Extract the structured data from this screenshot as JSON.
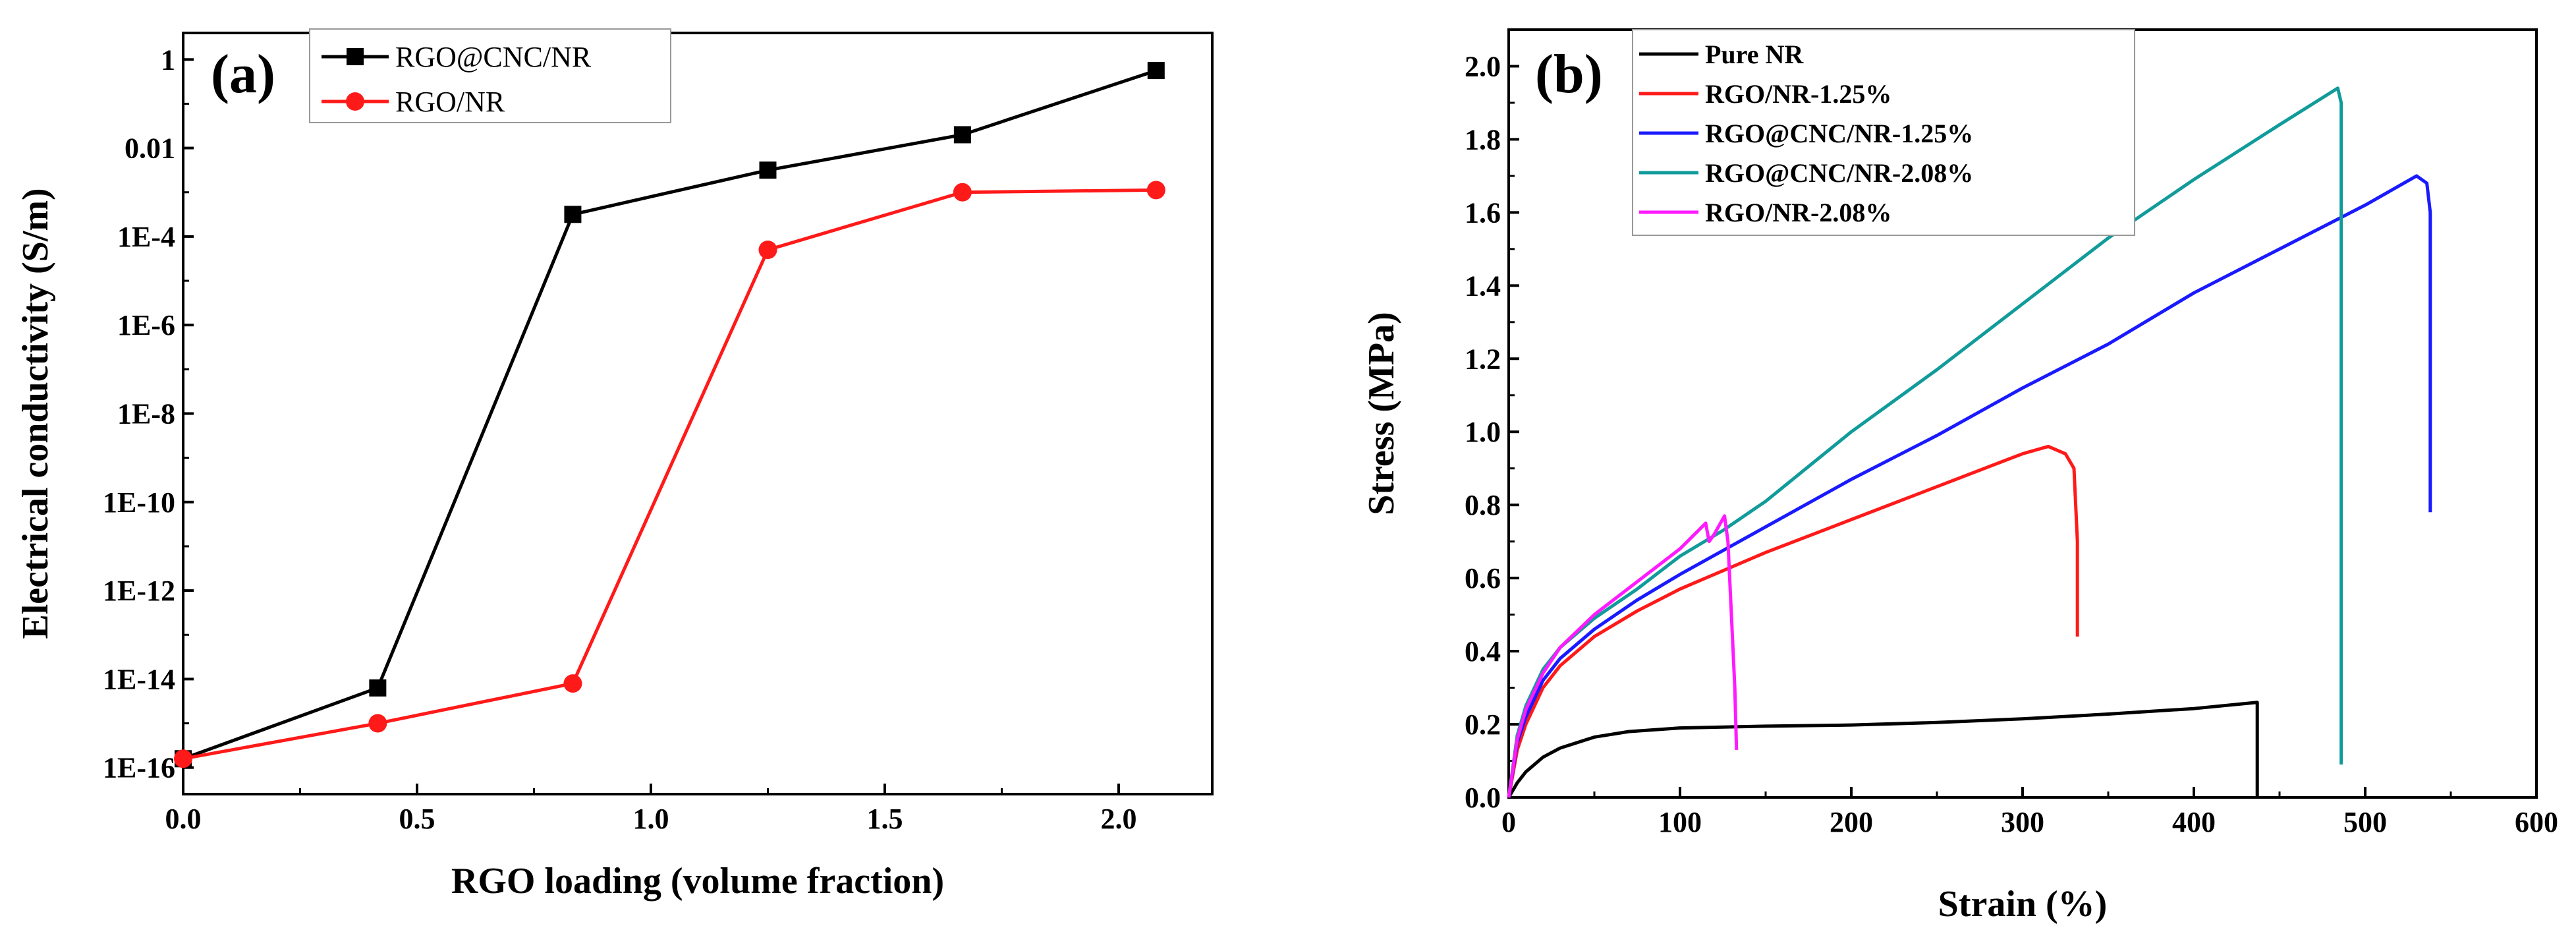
{
  "chart_data": [
    {
      "panel_label": "(a)",
      "type": "line",
      "y_scale": "log",
      "xlabel": "RGO loading (volume fraction)",
      "ylabel": "Electrical conductivity (S/m)",
      "xlim": [
        0,
        2.2
      ],
      "ylim_exp": [
        -16.6,
        0.6
      ],
      "x_ticks": [
        "0.0",
        "0.5",
        "1.0",
        "1.5",
        "2.0"
      ],
      "x_tick_values": [
        0,
        0.5,
        1.0,
        1.5,
        2.0
      ],
      "y_ticks": [
        "1",
        "0.01",
        "1E-4",
        "1E-6",
        "1E-8",
        "1E-10",
        "1E-12",
        "1E-14",
        "1E-16"
      ],
      "y_tick_exps": [
        0,
        -2,
        -4,
        -6,
        -8,
        -10,
        -12,
        -14,
        -16
      ],
      "legend_position": "top-center",
      "series": [
        {
          "name": "RGO@CNC/NR",
          "color": "#000000",
          "marker": "square",
          "x": [
            0,
            0.416,
            0.833,
            1.25,
            1.666,
            2.08
          ],
          "y_exp": [
            -15.8,
            -14.2,
            -3.5,
            -2.5,
            -1.7,
            -0.25
          ]
        },
        {
          "name": "RGO/NR",
          "color": "#ff1a1a",
          "marker": "circle",
          "x": [
            0,
            0.416,
            0.833,
            1.25,
            1.666,
            2.08
          ],
          "y_exp": [
            -15.8,
            -15.0,
            -14.1,
            -4.3,
            -3.0,
            -2.95
          ]
        }
      ]
    },
    {
      "panel_label": "(b)",
      "type": "line",
      "xlabel": "Strain (%)",
      "ylabel": "Stress (MPa)",
      "xlim": [
        0,
        600
      ],
      "ylim": [
        0,
        2.1
      ],
      "x_ticks": [
        "0",
        "100",
        "200",
        "300",
        "400",
        "500",
        "600"
      ],
      "x_tick_values": [
        0,
        100,
        200,
        300,
        400,
        500,
        600
      ],
      "y_ticks": [
        "0.0",
        "0.2",
        "0.4",
        "0.6",
        "0.8",
        "1.0",
        "1.2",
        "1.4",
        "1.6",
        "1.8",
        "2.0"
      ],
      "y_tick_values": [
        0,
        0.2,
        0.4,
        0.6,
        0.8,
        1.0,
        1.2,
        1.4,
        1.6,
        1.8,
        2.0
      ],
      "legend_position": "top-left",
      "series": [
        {
          "name": "Pure NR",
          "color": "#000000",
          "points": [
            [
              0,
              0
            ],
            [
              5,
              0.04
            ],
            [
              10,
              0.07
            ],
            [
              20,
              0.11
            ],
            [
              30,
              0.135
            ],
            [
              50,
              0.165
            ],
            [
              70,
              0.18
            ],
            [
              100,
              0.19
            ],
            [
              150,
              0.195
            ],
            [
              200,
              0.198
            ],
            [
              250,
              0.205
            ],
            [
              300,
              0.215
            ],
            [
              350,
              0.228
            ],
            [
              400,
              0.243
            ],
            [
              437,
              0.26
            ],
            [
              437,
              0.0
            ]
          ]
        },
        {
          "name": "RGO/NR-1.25%",
          "color": "#ff1a1a",
          "points": [
            [
              0,
              0
            ],
            [
              5,
              0.13
            ],
            [
              10,
              0.2
            ],
            [
              20,
              0.3
            ],
            [
              30,
              0.36
            ],
            [
              50,
              0.44
            ],
            [
              75,
              0.51
            ],
            [
              100,
              0.57
            ],
            [
              150,
              0.67
            ],
            [
              200,
              0.76
            ],
            [
              250,
              0.85
            ],
            [
              300,
              0.94
            ],
            [
              315,
              0.96
            ],
            [
              325,
              0.94
            ],
            [
              330,
              0.9
            ],
            [
              332,
              0.7
            ],
            [
              332,
              0.44
            ]
          ]
        },
        {
          "name": "RGO@CNC/NR-1.25%",
          "color": "#1a1aff",
          "points": [
            [
              0,
              0
            ],
            [
              5,
              0.15
            ],
            [
              10,
              0.22
            ],
            [
              20,
              0.32
            ],
            [
              30,
              0.38
            ],
            [
              50,
              0.46
            ],
            [
              75,
              0.54
            ],
            [
              100,
              0.61
            ],
            [
              150,
              0.74
            ],
            [
              200,
              0.87
            ],
            [
              250,
              0.99
            ],
            [
              300,
              1.12
            ],
            [
              350,
              1.24
            ],
            [
              400,
              1.38
            ],
            [
              450,
              1.5
            ],
            [
              500,
              1.62
            ],
            [
              530,
              1.7
            ],
            [
              536,
              1.68
            ],
            [
              538,
              1.6
            ],
            [
              538,
              0.78
            ]
          ]
        },
        {
          "name": "RGO@CNC/NR-2.08%",
          "color": "#119b9b",
          "points": [
            [
              0,
              0
            ],
            [
              5,
              0.17
            ],
            [
              10,
              0.25
            ],
            [
              20,
              0.35
            ],
            [
              30,
              0.41
            ],
            [
              50,
              0.49
            ],
            [
              75,
              0.57
            ],
            [
              100,
              0.66
            ],
            [
              125,
              0.73
            ],
            [
              150,
              0.81
            ],
            [
              200,
              1.0
            ],
            [
              250,
              1.17
            ],
            [
              300,
              1.35
            ],
            [
              350,
              1.53
            ],
            [
              400,
              1.69
            ],
            [
              450,
              1.84
            ],
            [
              484,
              1.94
            ],
            [
              486,
              1.9
            ],
            [
              486,
              1.0
            ],
            [
              486,
              0.09
            ]
          ]
        },
        {
          "name": "RGO/NR-2.08%",
          "color": "#ff1aff",
          "points": [
            [
              0,
              0
            ],
            [
              5,
              0.16
            ],
            [
              10,
              0.24
            ],
            [
              20,
              0.34
            ],
            [
              30,
              0.41
            ],
            [
              50,
              0.5
            ],
            [
              75,
              0.59
            ],
            [
              100,
              0.68
            ],
            [
              115,
              0.75
            ],
            [
              117,
              0.7
            ],
            [
              120,
              0.72
            ],
            [
              126,
              0.77
            ],
            [
              128,
              0.7
            ],
            [
              130,
              0.5
            ],
            [
              132,
              0.3
            ],
            [
              133,
              0.13
            ]
          ]
        }
      ]
    }
  ]
}
